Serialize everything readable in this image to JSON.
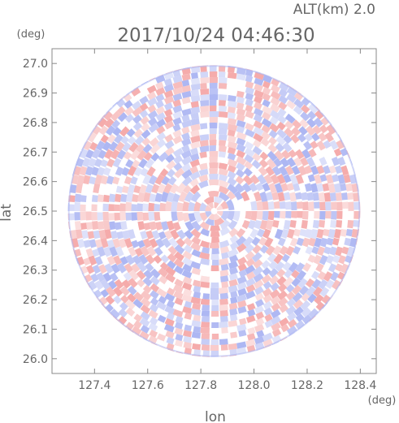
{
  "chart_data": {
    "type": "heatmap",
    "title": "2017/10/24 04:46:30",
    "subtitle": "ALT(km) 2.0",
    "xlabel": "lon",
    "ylabel": "lat",
    "x_unit": "(deg)",
    "y_unit": "(deg)",
    "xlim": [
      127.24,
      128.46
    ],
    "ylim": [
      25.95,
      27.05
    ],
    "x_ticks": [
      "127.4",
      "127.6",
      "127.8",
      "128.0",
      "128.2",
      "128.4"
    ],
    "x_tick_values": [
      127.4,
      127.6,
      127.8,
      128.0,
      128.2,
      128.4
    ],
    "y_ticks": [
      "26.0",
      "26.1",
      "26.2",
      "26.3",
      "26.4",
      "26.5",
      "26.6",
      "26.7",
      "26.8",
      "26.9",
      "27.0"
    ],
    "y_tick_values": [
      26.0,
      26.1,
      26.2,
      26.3,
      26.4,
      26.5,
      26.6,
      26.7,
      26.8,
      26.9,
      27.0
    ],
    "grid": false,
    "center": {
      "lon": 127.85,
      "lat": 26.5
    },
    "radius_deg": 0.55,
    "colors": {
      "positive": "#f4a6a6",
      "negative": "#a9b3f2",
      "neutral": "#ffffff",
      "frame": "#888888",
      "text": "#666666"
    }
  }
}
